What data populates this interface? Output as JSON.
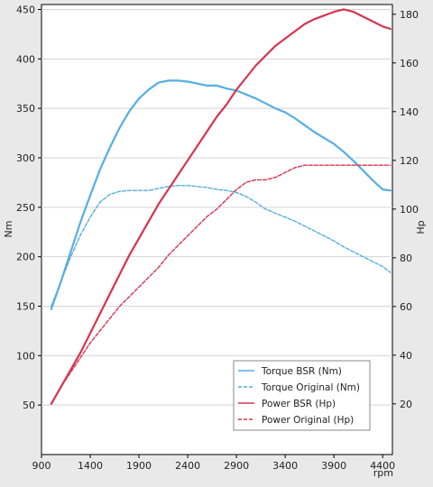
{
  "chart_data": {
    "type": "line",
    "xlabel": "rpm",
    "ylabel_left": "Nm",
    "ylabel_right": "Hp",
    "x_ticks": [
      900,
      1400,
      1900,
      2400,
      2900,
      3400,
      3900,
      4400
    ],
    "x_range": [
      900,
      4500
    ],
    "y_left_ticks": [
      50,
      100,
      150,
      200,
      250,
      300,
      350,
      400,
      450
    ],
    "y_left_range": [
      0,
      455
    ],
    "y_right_ticks": [
      20,
      40,
      60,
      80,
      100,
      120,
      140,
      160,
      180
    ],
    "y_right_range": [
      -0.8,
      184
    ],
    "grid": "horizontal",
    "legend_position": "bottom-right",
    "legend": [
      {
        "label": "Torque BSR (Nm)",
        "color": "#56aee3",
        "dashed": false
      },
      {
        "label": "Torque Original (Nm)",
        "color": "#56aee3",
        "dashed": true
      },
      {
        "label": "Power BSR (Hp)",
        "color": "#d8334f",
        "dashed": false
      },
      {
        "label": "Power Original (Hp)",
        "color": "#d8334f",
        "dashed": true
      }
    ],
    "series": [
      {
        "name": "Torque BSR (Nm)",
        "axis": "left",
        "color": "#56aee3",
        "dashed": false,
        "width": 2.2,
        "x": [
          1000,
          1100,
          1200,
          1300,
          1400,
          1500,
          1600,
          1700,
          1800,
          1900,
          2000,
          2100,
          2200,
          2300,
          2400,
          2500,
          2600,
          2700,
          2800,
          2900,
          3000,
          3100,
          3200,
          3300,
          3400,
          3500,
          3600,
          3700,
          3800,
          3900,
          4000,
          4100,
          4200,
          4300,
          4400,
          4480
        ],
        "y": [
          147,
          175,
          205,
          235,
          262,
          288,
          310,
          330,
          347,
          360,
          369,
          376,
          378,
          378,
          377,
          375,
          373,
          373,
          370,
          368,
          364,
          360,
          355,
          350,
          346,
          340,
          333,
          326,
          320,
          314,
          306,
          297,
          287,
          277,
          268,
          267
        ]
      },
      {
        "name": "Torque Original (Nm)",
        "axis": "left",
        "color": "#56aee3",
        "dashed": true,
        "width": 1.4,
        "x": [
          1000,
          1100,
          1200,
          1300,
          1400,
          1500,
          1600,
          1700,
          1800,
          1900,
          2000,
          2100,
          2200,
          2300,
          2400,
          2500,
          2600,
          2700,
          2800,
          2900,
          3000,
          3100,
          3200,
          3300,
          3400,
          3500,
          3600,
          3700,
          3800,
          3900,
          4000,
          4100,
          4200,
          4300,
          4400,
          4480
        ],
        "y": [
          150,
          175,
          200,
          222,
          240,
          255,
          263,
          266,
          267,
          267,
          267,
          269,
          271,
          272,
          272,
          271,
          270,
          268,
          267,
          265,
          261,
          255,
          248,
          244,
          240,
          236,
          231,
          226,
          221,
          216,
          210,
          205,
          200,
          195,
          190,
          184
        ]
      },
      {
        "name": "Power BSR (Hp)",
        "axis": "right",
        "color": "#d8334f",
        "dashed": false,
        "width": 2.2,
        "x": [
          1000,
          1100,
          1200,
          1300,
          1400,
          1500,
          1600,
          1700,
          1800,
          1900,
          2000,
          2100,
          2200,
          2300,
          2400,
          2500,
          2600,
          2700,
          2800,
          2900,
          3000,
          3100,
          3200,
          3300,
          3400,
          3500,
          3600,
          3700,
          3800,
          3900,
          4000,
          4100,
          4200,
          4300,
          4400,
          4480
        ],
        "y": [
          20,
          27,
          34,
          41,
          49,
          57,
          65,
          73,
          81,
          88,
          95,
          102,
          108,
          114,
          120,
          126,
          132,
          138,
          143,
          149,
          154,
          159,
          163,
          167,
          170,
          173,
          176,
          178,
          179.5,
          181,
          182,
          181,
          179,
          177,
          175,
          174
        ]
      },
      {
        "name": "Power Original (Hp)",
        "axis": "right",
        "color": "#d8334f",
        "dashed": true,
        "width": 1.4,
        "x": [
          1000,
          1100,
          1200,
          1300,
          1400,
          1500,
          1600,
          1700,
          1800,
          1900,
          2000,
          2100,
          2200,
          2300,
          2400,
          2500,
          2600,
          2700,
          2800,
          2900,
          3000,
          3100,
          3200,
          3300,
          3400,
          3500,
          3600,
          3700,
          3800,
          3900,
          4000,
          4100,
          4200,
          4300,
          4400,
          4480
        ],
        "y": [
          20,
          27,
          33,
          39,
          45,
          50,
          55,
          60,
          64,
          68,
          72,
          76,
          81,
          85,
          89,
          93,
          97,
          100,
          104,
          108,
          111,
          112,
          112,
          113,
          115,
          117,
          118,
          118,
          118,
          118,
          118,
          118,
          118,
          118,
          118,
          118
        ]
      }
    ]
  }
}
